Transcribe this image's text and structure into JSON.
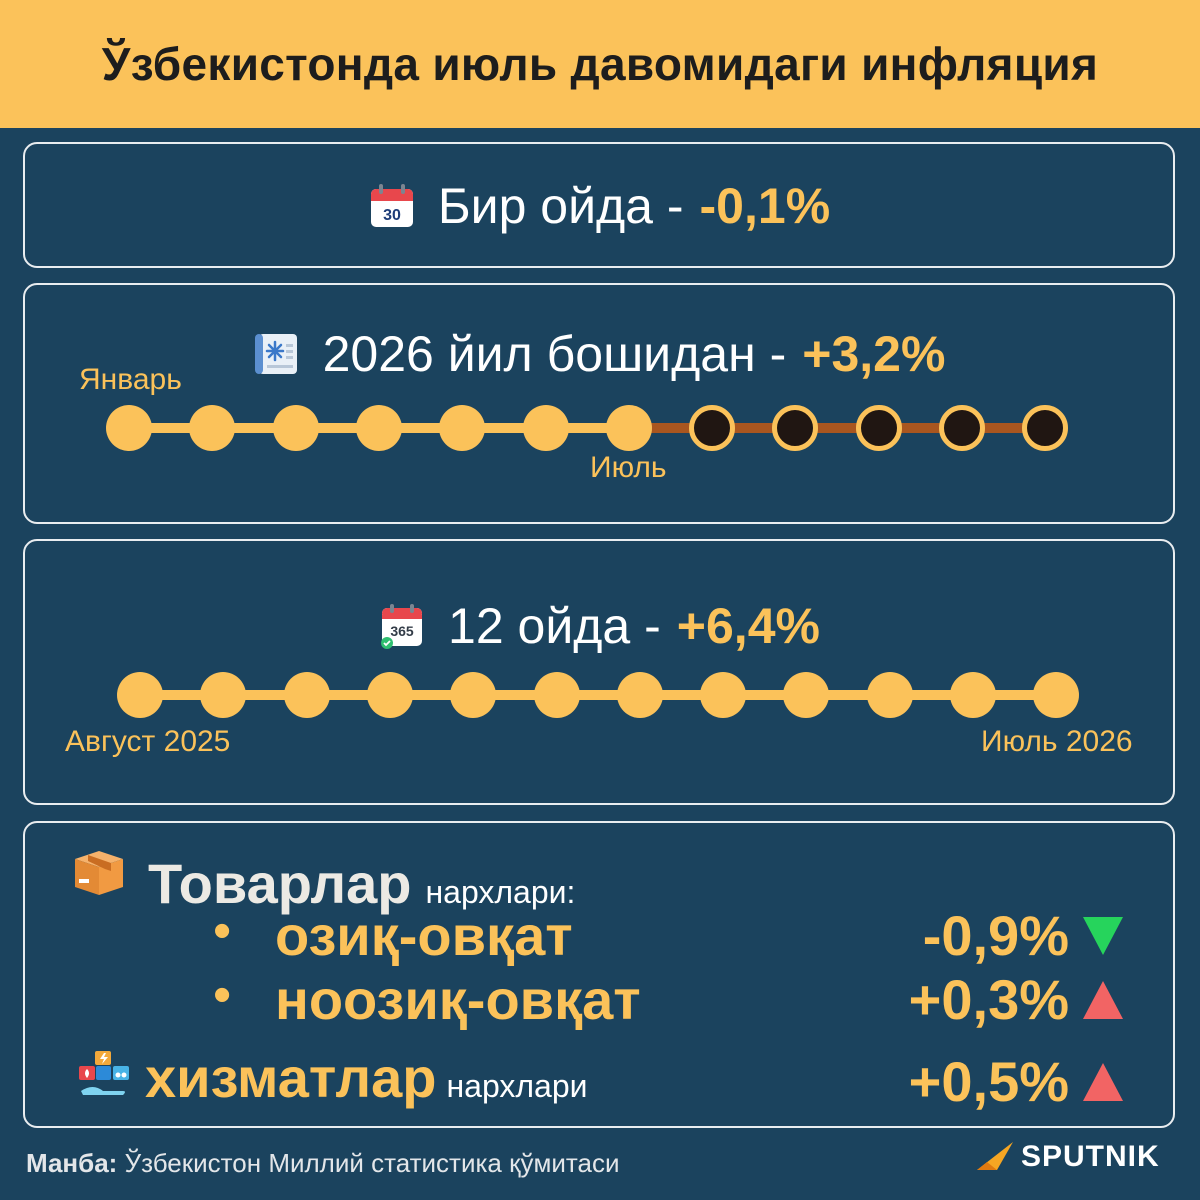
{
  "header": {
    "title": "Ўзбекистонда июль давомидаги инфляция"
  },
  "month": {
    "icon": "calendar-30-icon",
    "calendar_number": "30",
    "label": "Бир ойда - ",
    "value": "-0,1%"
  },
  "ytd": {
    "icon": "calendar-snowflake-icon",
    "label": "2026 йил бошидан - ",
    "value": "+3,2%",
    "start_label": "Январь",
    "end_label": "Июль",
    "months_total": 12,
    "months_elapsed": 7
  },
  "yoy": {
    "icon": "calendar-365-icon",
    "calendar_number": "365",
    "label": "12 ойда - ",
    "value": "+6,4%",
    "start_label": "Август 2025",
    "end_label": "Июль 2026",
    "months_total": 12,
    "months_elapsed": 12
  },
  "goods": {
    "icon": "box-icon",
    "title": "Товарлар",
    "suffix": "нархлари:",
    "items": [
      {
        "bullet": "•",
        "name": "озиқ-овқат",
        "value": "-0,9%",
        "trend_icon": "triangle-down-icon",
        "color": "#26d45c"
      },
      {
        "bullet": "•",
        "name": "ноозиқ-овқат",
        "value": "+0,3%",
        "trend_icon": "triangle-up-icon",
        "color": "#f26464"
      }
    ]
  },
  "services": {
    "icon": "services-icon",
    "title": "хизматлар",
    "suffix": "нархлари",
    "value": "+0,5%",
    "trend_icon": "triangle-up-icon",
    "color": "#f26464"
  },
  "footer": {
    "source_label": "Манба:",
    "source_text": "Ўзбекистон Миллий статистика қўмитаси",
    "brand": "SPUTNIK"
  },
  "colors": {
    "accent": "#fbc25a",
    "background": "#1b435e",
    "future_track": "#a9561f"
  }
}
